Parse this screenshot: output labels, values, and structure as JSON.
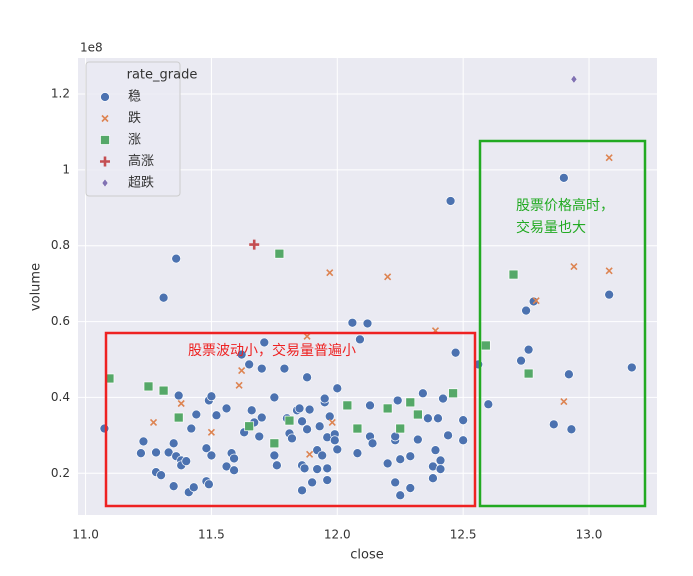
{
  "chart_data": {
    "type": "scatter",
    "x_label": "close",
    "y_label": "volume",
    "y_offset_label": "1e8",
    "legend_title": "rate_grade",
    "legend": "upper left",
    "grid": true,
    "xlim": [
      10.97,
      13.27
    ],
    "ylim": [
      0.09,
      1.295
    ],
    "xticks": [
      {
        "value": 11,
        "label": "11.0"
      },
      11.5,
      {
        "value": 12,
        "label": "12.0"
      },
      12.5,
      {
        "value": 13,
        "label": "13.0"
      }
    ],
    "yticks": [
      0.2,
      0.4,
      0.6,
      0.8,
      1.0,
      1.2
    ],
    "series": [
      {
        "name": "稳",
        "color": "#4c72b0",
        "marker": "circle",
        "x": [
          11.075,
          11.23,
          11.22,
          11.28,
          11.28,
          11.3,
          11.31,
          11.36,
          11.33,
          11.35,
          11.36,
          11.35,
          11.37,
          11.38,
          11.38,
          11.4,
          11.41,
          11.43,
          11.42,
          11.44,
          11.48,
          11.48,
          11.49,
          11.5,
          11.49,
          11.5,
          11.52,
          11.56,
          11.56,
          11.58,
          11.59,
          11.59,
          11.62,
          11.63,
          11.65,
          11.66,
          11.67,
          11.69,
          11.7,
          11.71,
          11.7,
          11.75,
          11.75,
          11.76,
          11.79,
          11.8,
          11.81,
          11.82,
          11.84,
          11.85,
          11.86,
          11.86,
          11.87,
          11.86,
          11.88,
          11.88,
          11.89,
          11.9,
          11.92,
          11.92,
          11.93,
          11.94,
          11.95,
          11.95,
          11.96,
          11.96,
          11.96,
          11.97,
          11.99,
          11.99,
          12.0,
          12.0,
          12.06,
          12.08,
          12.09,
          12.12,
          12.13,
          12.13,
          12.14,
          12.2,
          12.23,
          12.23,
          12.24,
          12.23,
          12.25,
          12.25,
          12.29,
          12.29,
          12.32,
          12.34,
          12.36,
          12.38,
          12.38,
          12.39,
          12.4,
          12.41,
          12.41,
          12.42,
          12.44,
          12.45,
          12.47,
          12.5,
          12.5,
          12.56,
          12.6,
          12.73,
          12.75,
          12.76,
          12.78,
          12.86,
          12.9,
          12.92,
          12.93,
          13.08,
          13.17
        ],
        "values": [
          0.318,
          0.284,
          0.253,
          0.255,
          0.203,
          0.195,
          0.663,
          0.766,
          0.255,
          0.279,
          0.245,
          0.166,
          0.405,
          0.234,
          0.221,
          0.232,
          0.15,
          0.163,
          0.318,
          0.355,
          0.266,
          0.179,
          0.392,
          0.403,
          0.171,
          0.247,
          0.353,
          0.371,
          0.218,
          0.253,
          0.208,
          0.239,
          0.513,
          0.308,
          0.487,
          0.366,
          0.334,
          0.297,
          0.476,
          0.545,
          0.347,
          0.4,
          0.247,
          0.221,
          0.476,
          0.345,
          0.305,
          0.292,
          0.366,
          0.371,
          0.337,
          0.221,
          0.213,
          0.155,
          0.316,
          0.453,
          0.368,
          0.176,
          0.261,
          0.211,
          0.324,
          0.247,
          0.387,
          0.397,
          0.295,
          0.213,
          0.182,
          0.35,
          0.303,
          0.287,
          0.424,
          0.263,
          0.597,
          0.253,
          0.553,
          0.595,
          0.379,
          0.297,
          0.279,
          0.226,
          0.287,
          0.297,
          0.392,
          0.176,
          0.142,
          0.237,
          0.161,
          0.245,
          0.289,
          0.411,
          0.345,
          0.218,
          0.187,
          0.261,
          0.345,
          0.234,
          0.211,
          0.397,
          0.3,
          0.918,
          0.518,
          0.287,
          0.34,
          0.487,
          0.382,
          0.497,
          0.629,
          0.526,
          0.653,
          0.329,
          0.979,
          0.461,
          0.316,
          0.671,
          0.479
        ]
      },
      {
        "name": "跌",
        "color": "#dd8452",
        "marker": "x",
        "x": [
          11.27,
          11.38,
          11.5,
          11.61,
          11.62,
          11.88,
          11.89,
          11.97,
          11.98,
          12.2,
          12.39,
          12.9,
          12.94,
          13.08,
          13.08,
          12.79
        ],
        "values": [
          0.334,
          0.384,
          0.308,
          0.432,
          0.471,
          0.561,
          0.25,
          0.729,
          0.334,
          0.718,
          0.576,
          0.389,
          0.745,
          0.734,
          1.032,
          0.655
        ]
      },
      {
        "name": "涨",
        "color": "#55a868",
        "marker": "square",
        "x": [
          11.095,
          11.25,
          11.31,
          11.37,
          11.65,
          11.75,
          11.77,
          11.81,
          12.04,
          12.08,
          12.2,
          12.25,
          12.29,
          12.32,
          12.46,
          12.59,
          12.7,
          12.76
        ],
        "values": [
          0.45,
          0.429,
          0.418,
          0.347,
          0.324,
          0.279,
          0.779,
          0.339,
          0.379,
          0.318,
          0.371,
          0.318,
          0.387,
          0.355,
          0.411,
          0.537,
          0.724,
          0.463
        ]
      },
      {
        "name": "高涨",
        "color": "#c44e52",
        "marker": "plus",
        "x": [
          11.67
        ],
        "values": [
          0.803
        ]
      },
      {
        "name": "超跌",
        "color": "#8172b3",
        "marker": "diamond",
        "x": [
          12.94
        ],
        "values": [
          1.239
        ]
      }
    ],
    "annotations": [
      {
        "text": [
          "股票波动小，交易量普遍小"
        ],
        "color": "#ee2222"
      },
      {
        "text": [
          "股票价格高时，",
          "交易量也大"
        ],
        "color": "#22aa22"
      }
    ]
  }
}
